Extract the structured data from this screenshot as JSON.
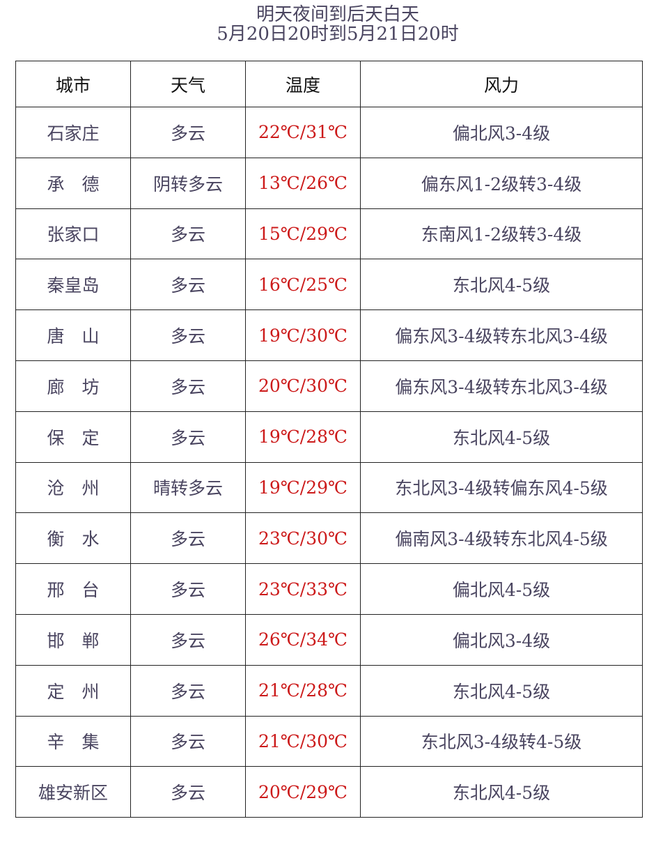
{
  "title": {
    "line1": "明天夜间到后天白天",
    "line2": "5月20日20时到5月21日20时"
  },
  "colors": {
    "text": "#4a4560",
    "temperature": "#cc1a1a",
    "border": "#222222"
  },
  "table": {
    "headers": [
      "城市",
      "天气",
      "温度",
      "风力"
    ],
    "rows": [
      {
        "city": "石家庄",
        "weather": "多云",
        "temp": "22℃/31℃",
        "wind": "偏北风3-4级"
      },
      {
        "city": "承　德",
        "weather": "阴转多云",
        "temp": "13℃/26℃",
        "wind": "偏东风1-2级转3-4级"
      },
      {
        "city": "张家口",
        "weather": "多云",
        "temp": "15℃/29℃",
        "wind": "东南风1-2级转3-4级"
      },
      {
        "city": "秦皇岛",
        "weather": "多云",
        "temp": "16℃/25℃",
        "wind": "东北风4-5级"
      },
      {
        "city": "唐　山",
        "weather": "多云",
        "temp": "19℃/30℃",
        "wind": "偏东风3-4级转东北风3-4级"
      },
      {
        "city": "廊　坊",
        "weather": "多云",
        "temp": "20℃/30℃",
        "wind": "偏东风3-4级转东北风3-4级"
      },
      {
        "city": "保　定",
        "weather": "多云",
        "temp": "19℃/28℃",
        "wind": "东北风4-5级"
      },
      {
        "city": "沧　州",
        "weather": "晴转多云",
        "temp": "19℃/29℃",
        "wind": "东北风3-4级转偏东风4-5级"
      },
      {
        "city": "衡　水",
        "weather": "多云",
        "temp": "23℃/30℃",
        "wind": "偏南风3-4级转东北风4-5级"
      },
      {
        "city": "邢　台",
        "weather": "多云",
        "temp": "23℃/33℃",
        "wind": "偏北风4-5级"
      },
      {
        "city": "邯　郸",
        "weather": "多云",
        "temp": "26℃/34℃",
        "wind": "偏北风3-4级"
      },
      {
        "city": "定　州",
        "weather": "多云",
        "temp": "21℃/28℃",
        "wind": "东北风4-5级"
      },
      {
        "city": "辛　集",
        "weather": "多云",
        "temp": "21℃/30℃",
        "wind": "东北风3-4级转4-5级"
      },
      {
        "city": "雄安新区",
        "weather": "多云",
        "temp": "20℃/29℃",
        "wind": "东北风4-5级"
      }
    ]
  }
}
